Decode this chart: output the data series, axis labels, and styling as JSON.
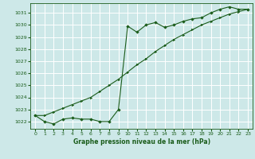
{
  "xlabel": "Graphe pression niveau de la mer (hPa)",
  "bg_color": "#cde8e8",
  "grid_color": "#ffffff",
  "line_color": "#1a5c1a",
  "x_ticks": [
    0,
    1,
    2,
    3,
    4,
    5,
    6,
    7,
    8,
    9,
    10,
    11,
    12,
    13,
    14,
    15,
    16,
    17,
    18,
    19,
    20,
    21,
    22,
    23
  ],
  "ylim": [
    1021.4,
    1031.8
  ],
  "yticks": [
    1022,
    1023,
    1024,
    1025,
    1026,
    1027,
    1028,
    1029,
    1030,
    1031
  ],
  "curvy_x": [
    0,
    1,
    2,
    3,
    4,
    5,
    6,
    7,
    8,
    9,
    10,
    11,
    12,
    13,
    14,
    15,
    16,
    17,
    18,
    19,
    20,
    21,
    22,
    23
  ],
  "curvy_y": [
    1022.5,
    1022.0,
    1021.8,
    1022.2,
    1022.3,
    1022.2,
    1022.2,
    1022.0,
    1022.0,
    1023.0,
    1029.9,
    1029.4,
    1030.0,
    1030.2,
    1029.8,
    1030.0,
    1030.3,
    1030.5,
    1030.6,
    1031.0,
    1031.3,
    1031.5,
    1031.3,
    1031.3
  ],
  "trend_x": [
    0,
    1,
    2,
    3,
    4,
    5,
    6,
    7,
    8,
    9,
    10,
    11,
    12,
    13,
    14,
    15,
    16,
    17,
    18,
    19,
    20,
    21,
    22,
    23
  ],
  "trend_y": [
    1022.5,
    1022.5,
    1022.8,
    1023.1,
    1023.4,
    1023.7,
    1024.0,
    1024.5,
    1025.0,
    1025.5,
    1026.1,
    1026.7,
    1027.2,
    1027.8,
    1028.3,
    1028.8,
    1029.2,
    1029.6,
    1030.0,
    1030.3,
    1030.6,
    1030.9,
    1031.1,
    1031.3
  ]
}
